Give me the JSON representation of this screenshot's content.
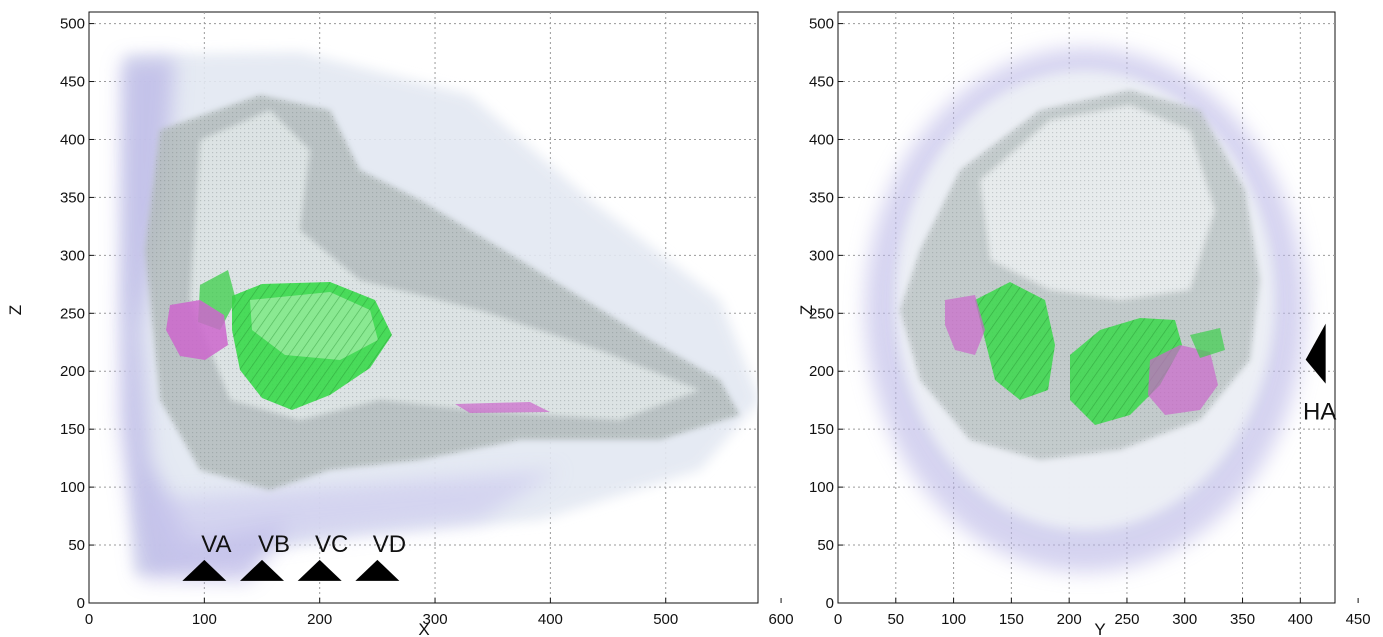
{
  "panels": [
    {
      "id": "left",
      "xlabel": "X",
      "ylabel": "Z",
      "xticks": [
        0,
        100,
        200,
        300,
        400,
        500,
        600
      ],
      "yticks": [
        0,
        50,
        100,
        150,
        200,
        250,
        300,
        350,
        400,
        450,
        500
      ],
      "xlim": [
        0,
        580
      ],
      "ylim": [
        0,
        510
      ],
      "markers": [
        {
          "label": "VA",
          "x": 100,
          "z": 20,
          "direction": "up"
        },
        {
          "label": "VB",
          "x": 150,
          "z": 20,
          "direction": "up"
        },
        {
          "label": "VC",
          "x": 200,
          "z": 20,
          "direction": "up"
        },
        {
          "label": "VD",
          "x": 250,
          "z": 20,
          "direction": "up"
        }
      ]
    },
    {
      "id": "right",
      "xlabel": "Y",
      "ylabel": "Z",
      "xticks": [
        0,
        50,
        100,
        150,
        200,
        250,
        300,
        350,
        400,
        450
      ],
      "yticks": [
        0,
        50,
        100,
        150,
        200,
        250,
        300,
        350,
        400,
        450,
        500
      ],
      "xlim": [
        0,
        430
      ],
      "ylim": [
        0,
        510
      ],
      "markers": [
        {
          "label": "HA",
          "x": 415,
          "z": 210,
          "direction": "left"
        }
      ]
    }
  ],
  "colors": {
    "tissue_purple": "#b9b6e6",
    "tissue_gray": "#a9b3b3",
    "tissue_light": "#dfe8ec",
    "organ_green": "#39d94a",
    "organ_magenta": "#cc66cc"
  }
}
